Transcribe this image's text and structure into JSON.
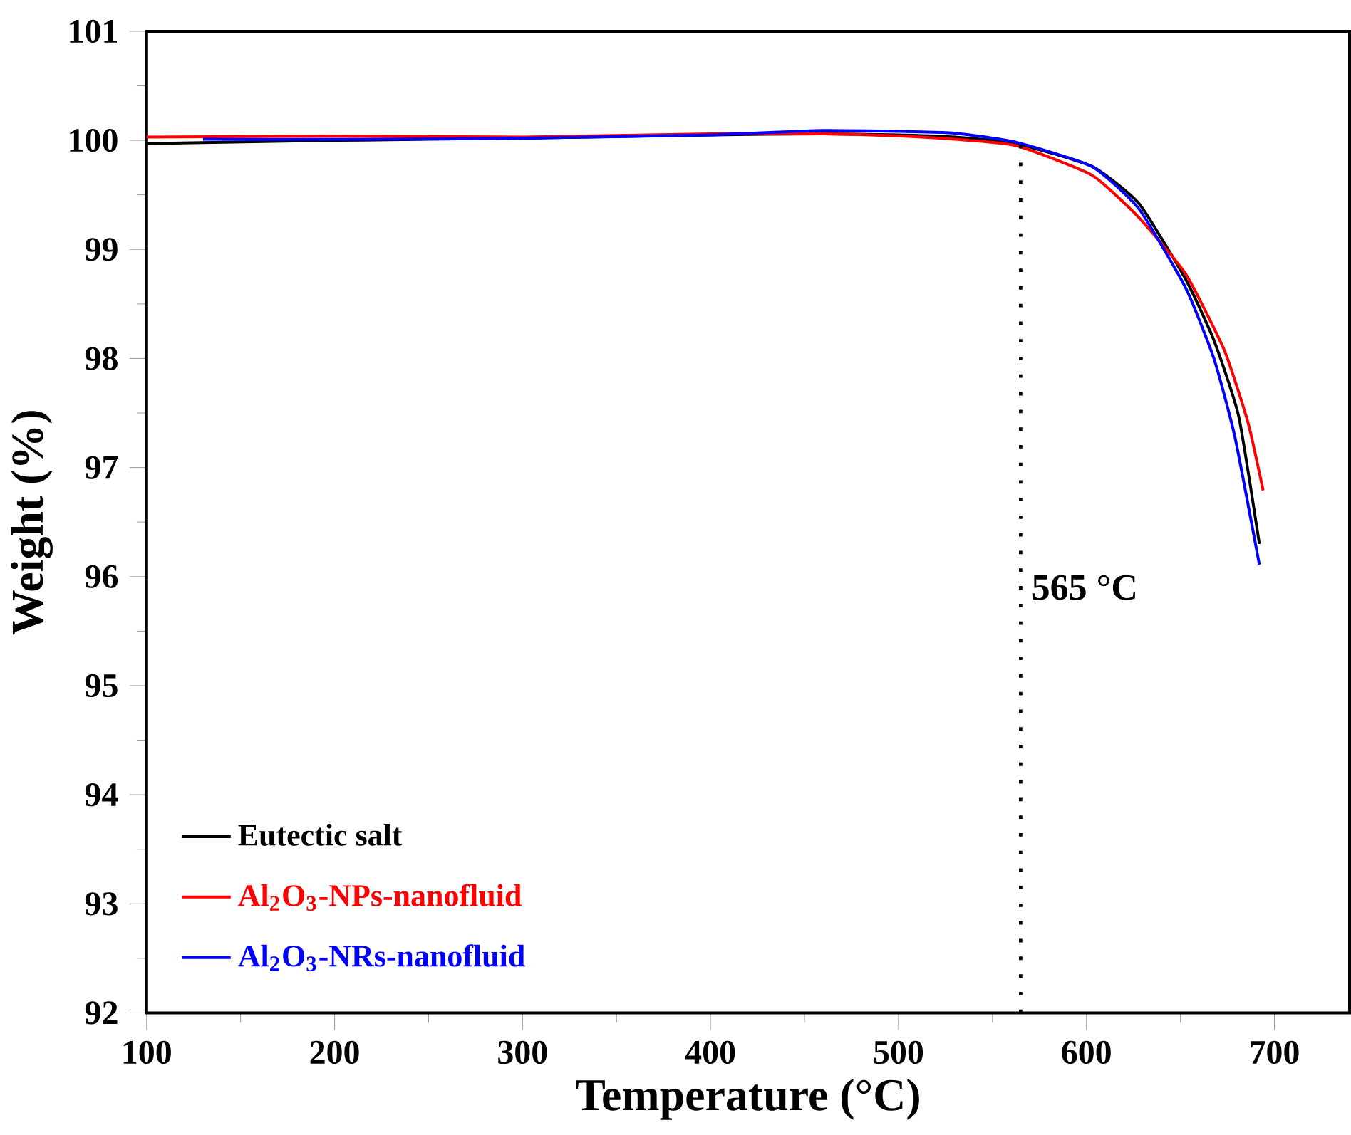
{
  "chart_data": {
    "type": "line",
    "xlabel": "Temperature (°C)",
    "ylabel": "Weight (%)",
    "xlim": [
      100,
      740
    ],
    "xticks": [
      100,
      200,
      300,
      400,
      500,
      600,
      700
    ],
    "ylim": [
      92,
      101
    ],
    "yticks": [
      92,
      93,
      94,
      95,
      96,
      97,
      98,
      99,
      100,
      101
    ],
    "grid": false,
    "legend": "bottom left",
    "marker": "none",
    "line_style": "solid",
    "ref_lines": [
      {
        "axis": "x",
        "value": 565,
        "label": "565 °C",
        "color": "#000000",
        "line_style": "dotted"
      }
    ],
    "series": [
      {
        "name": "Eutectic salt",
        "color": "#000000",
        "x": [
          100,
          200,
          300,
          400,
          460,
          500,
          530,
          563,
          603,
          628,
          653,
          668,
          681,
          692
        ],
        "values": [
          99.97,
          100.0,
          100.02,
          100.05,
          100.06,
          100.05,
          100.03,
          99.97,
          99.76,
          99.42,
          98.72,
          98.16,
          97.47,
          96.3
        ]
      },
      {
        "name": "Al$_{2}$O$_{3}$-NPs-nanofluid",
        "color": "#ff0000",
        "x": [
          100,
          200,
          300,
          401,
          460,
          501.5,
          530,
          563,
          603,
          628,
          653,
          673.5,
          686,
          694
        ],
        "values": [
          100.03,
          100.04,
          100.03,
          100.06,
          100.06,
          100.04,
          100.01,
          99.95,
          99.68,
          99.29,
          98.77,
          98.07,
          97.41,
          96.79
        ]
      },
      {
        "name": "Al$_{2}$O$_{3}$-NRs-nanofluid",
        "color": "#0000ff",
        "x": [
          130,
          200,
          300,
          400,
          460,
          527,
          563,
          603,
          628,
          653,
          668,
          679,
          692
        ],
        "values": [
          100.01,
          100.01,
          100.02,
          100.05,
          100.09,
          100.07,
          99.98,
          99.76,
          99.37,
          98.64,
          97.99,
          97.28,
          96.11
        ]
      }
    ]
  }
}
